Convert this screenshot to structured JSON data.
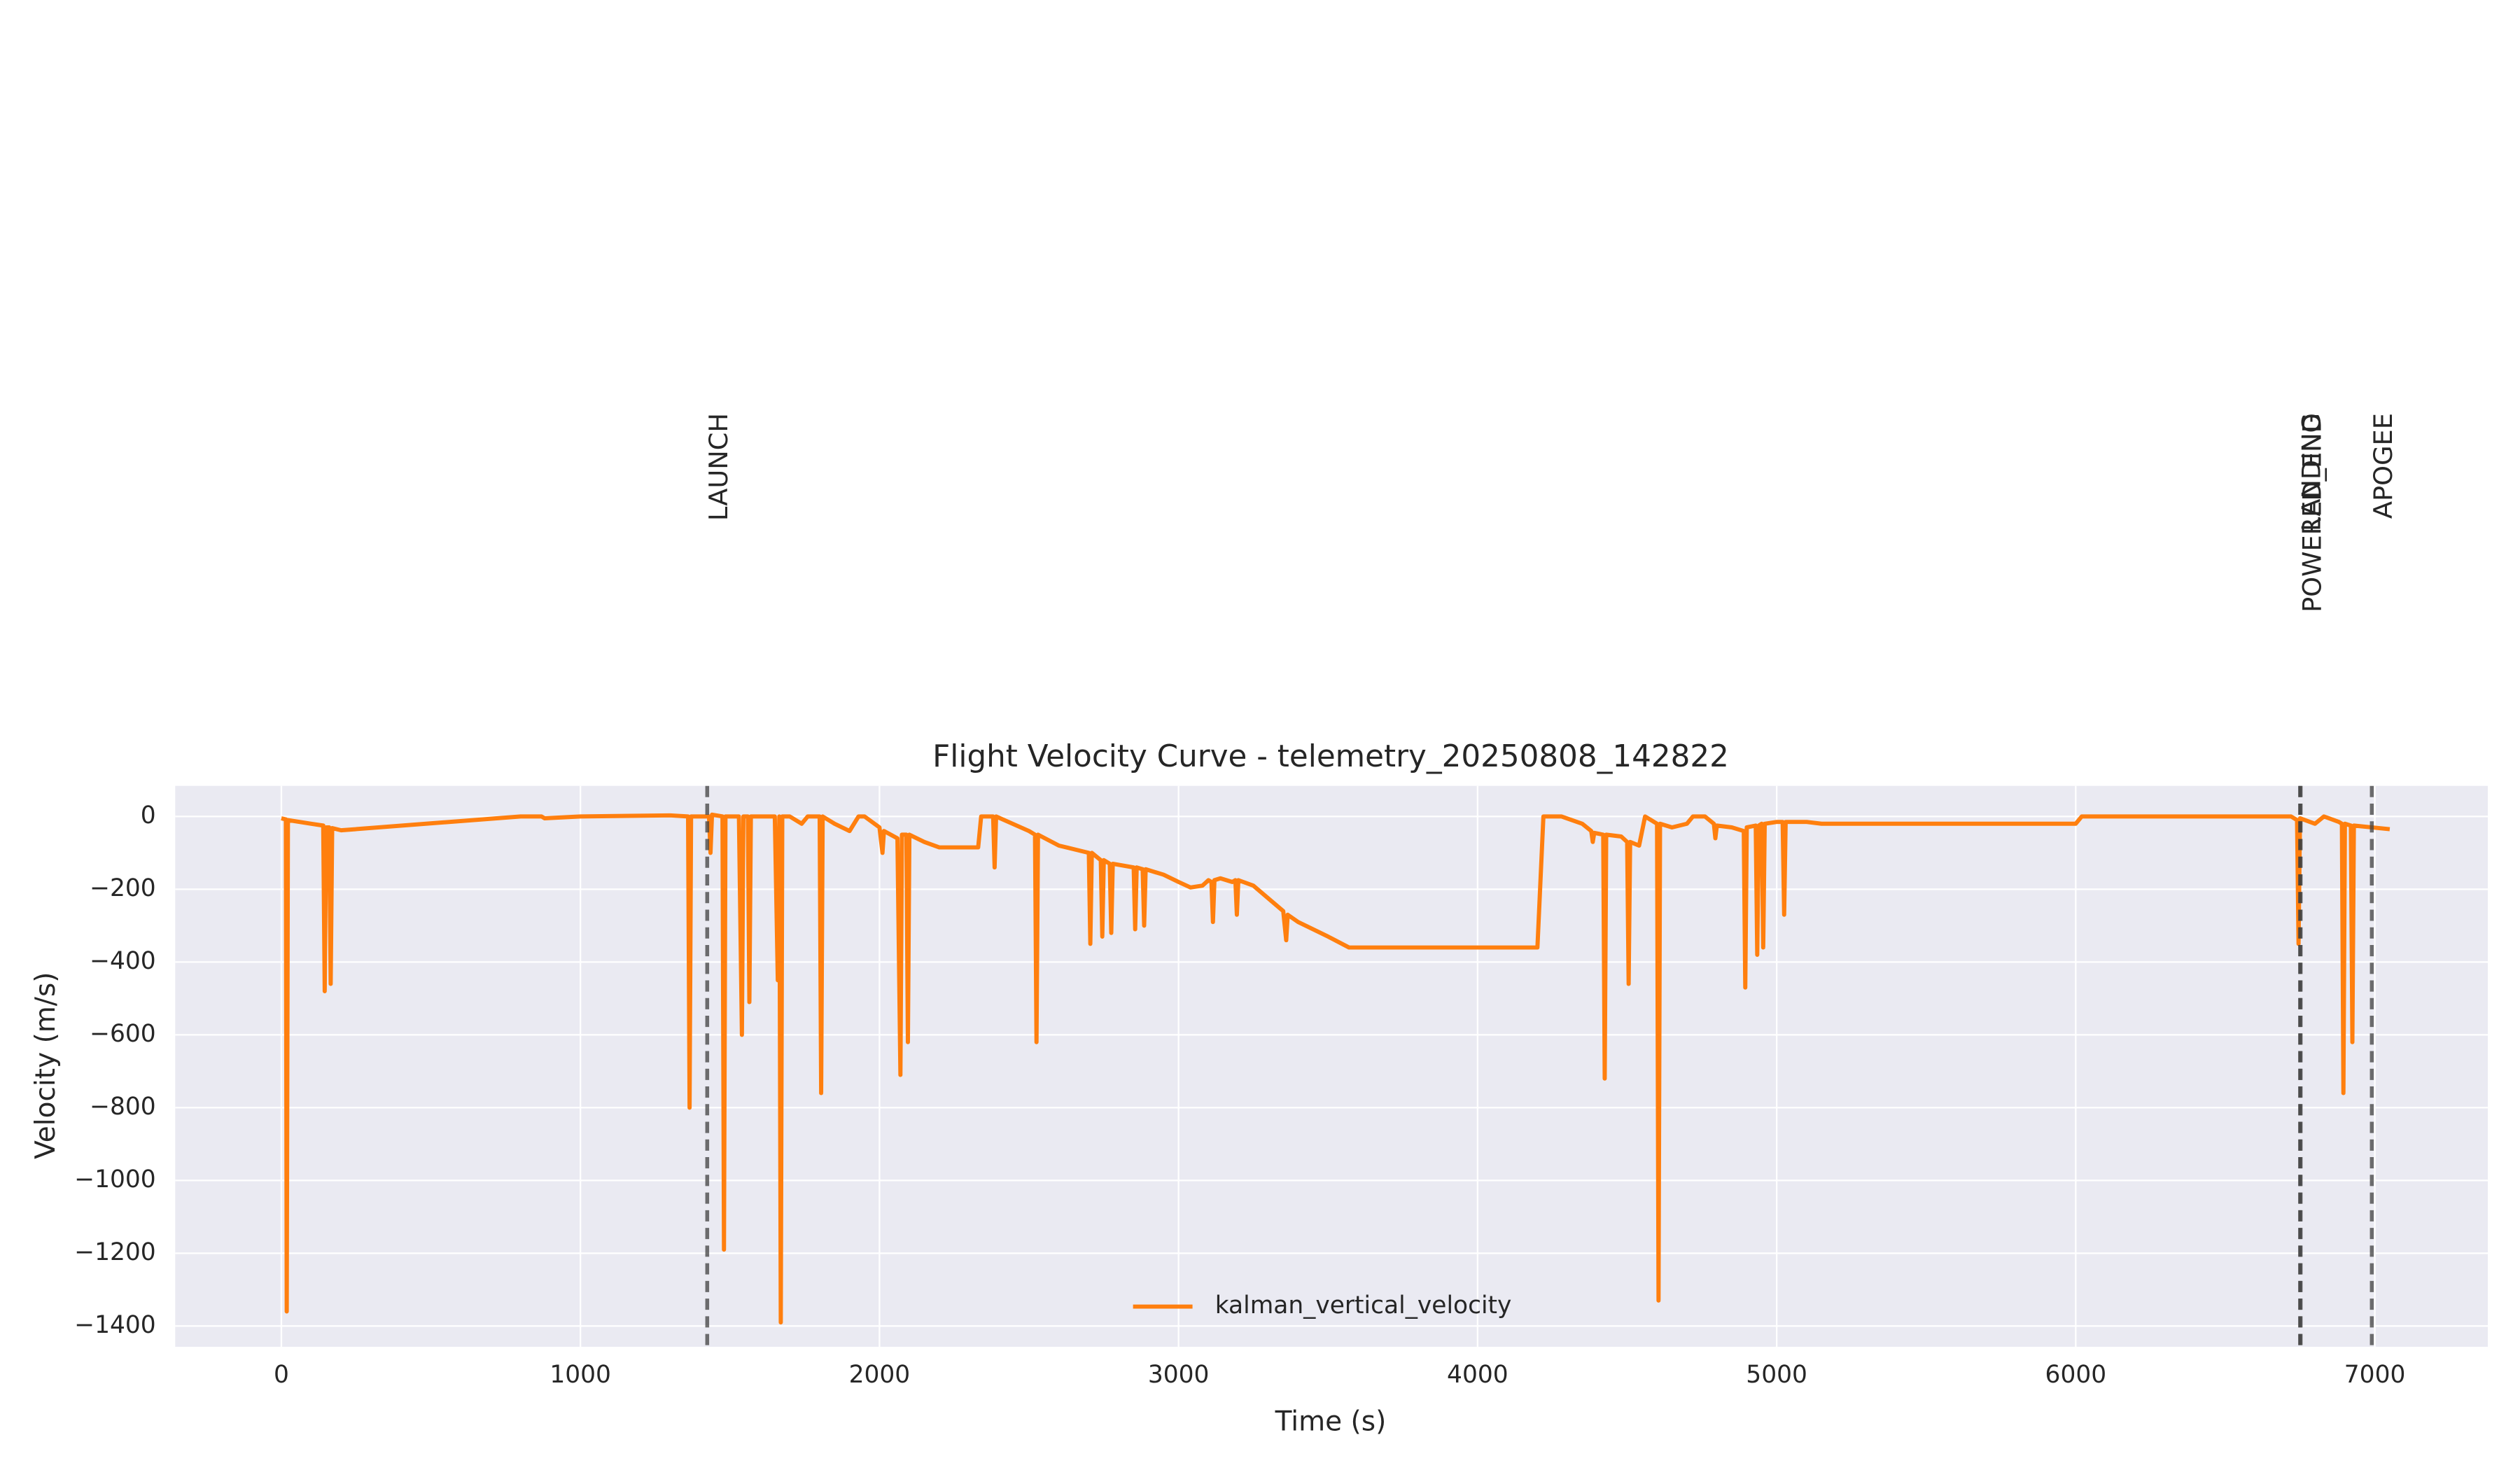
{
  "chart_data": {
    "type": "line",
    "title": "Flight Velocity Curve - telemetry_20250808_142822",
    "x_label": "Time (s)",
    "y_label": "Velocity (m/s)",
    "xlim": [
      -355,
      7378
    ],
    "ylim": [
      -1457,
      84
    ],
    "xticks": [
      0,
      1000,
      2000,
      3000,
      4000,
      5000,
      6000,
      7000
    ],
    "yticks": [
      0,
      {
        "value": -200,
        "label": "−200"
      },
      {
        "value": -400,
        "label": "−400"
      },
      {
        "value": -600,
        "label": "−600"
      },
      {
        "value": -800,
        "label": "−800"
      },
      {
        "value": -1000,
        "label": "−1000"
      },
      {
        "value": -1200,
        "label": "−1200"
      },
      {
        "value": -1400,
        "label": "−1400"
      }
    ],
    "grid": true,
    "legend": "lower center",
    "annotations": [
      {
        "label": "LAUNCH",
        "x": 1424
      },
      {
        "label": "LANDING",
        "x": 6750
      },
      {
        "label": "POWERED_END",
        "x": 6752
      },
      {
        "label": "APOGEE",
        "x": 6990
      }
    ],
    "x": [
      0,
      15,
      18,
      22,
      100,
      140,
      145,
      150,
      160,
      165,
      170,
      200,
      800,
      870,
      880,
      1000,
      1300,
      1360,
      1365,
      1370,
      1430,
      1435,
      1440,
      1475,
      1480,
      1485,
      1530,
      1540,
      1545,
      1560,
      1565,
      1570,
      1650,
      1660,
      1665,
      1670,
      1675,
      1700,
      1740,
      1760,
      1800,
      1805,
      1810,
      1850,
      1900,
      1930,
      1950,
      2000,
      2010,
      2015,
      2060,
      2070,
      2075,
      2090,
      2095,
      2100,
      2150,
      2200,
      2330,
      2340,
      2380,
      2385,
      2390,
      2500,
      2520,
      2525,
      2530,
      2600,
      2700,
      2705,
      2710,
      2740,
      2745,
      2750,
      2770,
      2775,
      2780,
      2850,
      2855,
      2860,
      2880,
      2885,
      2890,
      2950,
      3000,
      3040,
      3080,
      3100,
      3110,
      3115,
      3120,
      3140,
      3180,
      3190,
      3195,
      3200,
      3250,
      3350,
      3360,
      3365,
      3400,
      3500,
      3570,
      4200,
      4220,
      4280,
      4350,
      4380,
      4385,
      4390,
      4420,
      4425,
      4430,
      4480,
      4500,
      4505,
      4510,
      4540,
      4560,
      4580,
      4600,
      4605,
      4610,
      4650,
      4700,
      4720,
      4760,
      4790,
      4795,
      4800,
      4850,
      4890,
      4895,
      4900,
      4930,
      4935,
      4940,
      4950,
      4955,
      4960,
      5000,
      5020,
      5025,
      5030,
      5100,
      5150,
      6000,
      6020,
      6720,
      6740,
      6745,
      6750,
      6800,
      6830,
      6880,
      6890,
      6895,
      6900,
      6920,
      6925,
      6930,
      7050
    ],
    "series": [
      {
        "name": "kalman_vertical_velocity",
        "color": "#ff7f0e",
        "values": [
          -5,
          -8,
          -1360,
          -10,
          -20,
          -25,
          -480,
          -30,
          -30,
          -460,
          -32,
          -38,
          0,
          0,
          -5,
          0,
          3,
          0,
          -800,
          0,
          0,
          -100,
          5,
          0,
          -1190,
          0,
          0,
          -600,
          0,
          0,
          -510,
          0,
          0,
          -450,
          0,
          -1390,
          0,
          0,
          -20,
          0,
          0,
          -760,
          0,
          -20,
          -40,
          0,
          0,
          -30,
          -100,
          -40,
          -60,
          -710,
          -50,
          -50,
          -620,
          -50,
          -70,
          -85,
          -85,
          0,
          0,
          -140,
          0,
          -40,
          -50,
          -620,
          -50,
          -80,
          -100,
          -350,
          -100,
          -120,
          -330,
          -120,
          -130,
          -320,
          -130,
          -140,
          -310,
          -140,
          -145,
          -300,
          -145,
          -160,
          -180,
          -195,
          -190,
          -175,
          -180,
          -290,
          -175,
          -170,
          -180,
          -175,
          -270,
          -175,
          -190,
          -260,
          -340,
          -270,
          -290,
          -330,
          -360,
          -360,
          0,
          0,
          -20,
          -40,
          -70,
          -45,
          -50,
          -720,
          -50,
          -55,
          -70,
          -460,
          -70,
          -80,
          0,
          -10,
          -20,
          -1330,
          -20,
          -30,
          -20,
          0,
          0,
          -20,
          -60,
          -25,
          -30,
          -40,
          -470,
          -30,
          -25,
          -380,
          -25,
          -20,
          -360,
          -20,
          -15,
          -15,
          -270,
          -15,
          -15,
          -20,
          -20,
          0,
          0,
          -10,
          -350,
          -5,
          -20,
          0,
          -15,
          -20,
          -760,
          -20,
          -25,
          -620,
          -25,
          -35
        ]
      }
    ]
  }
}
